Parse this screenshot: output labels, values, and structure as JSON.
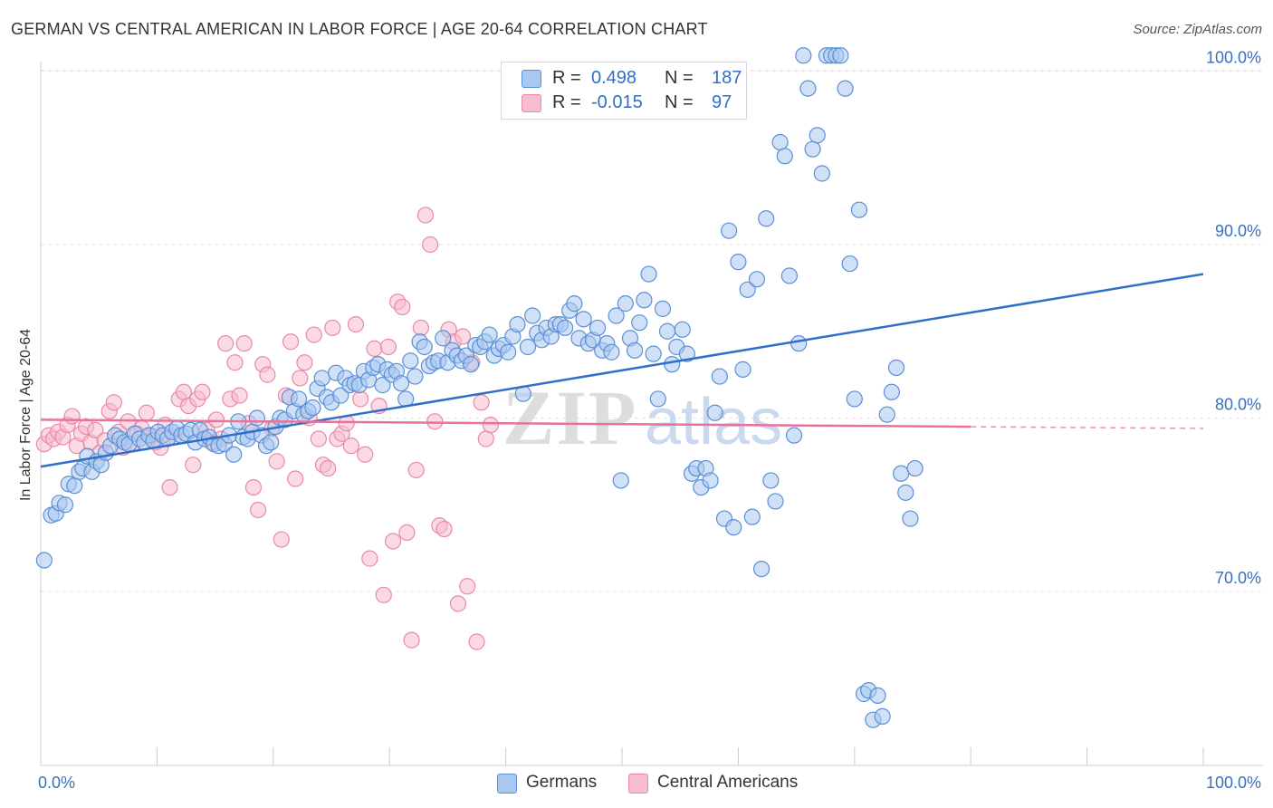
{
  "title": "GERMAN VS CENTRAL AMERICAN IN LABOR FORCE | AGE 20-64 CORRELATION CHART",
  "source": "Source: ZipAtlas.com",
  "legend": {
    "rows": [
      {
        "r_label": "R =",
        "r_value": "0.498",
        "n_label": "N =",
        "n_value": "187"
      },
      {
        "r_label": "R =",
        "r_value": "-0.015",
        "n_label": "N =",
        "n_value": "97"
      }
    ]
  },
  "bottom_legend": [
    "Germans",
    "Central Americans"
  ],
  "colors": {
    "german_fill": "#a9c8f0",
    "german_stroke": "#5b8fd6",
    "german_line": "#2f6fc9",
    "central_fill": "#f7bccd",
    "central_stroke": "#e88aa8",
    "central_line": "#e8729a",
    "axis_label": "#3a6fbf",
    "grid": "#e3e3e3"
  },
  "chart_data": {
    "type": "scatter",
    "title": "GERMAN VS CENTRAL AMERICAN IN LABOR FORCE | AGE 20-64 CORRELATION CHART",
    "xlabel": "",
    "ylabel": "In Labor Force | Age 20-64",
    "xlim": [
      0,
      100
    ],
    "ylim": [
      61,
      102
    ],
    "x_tick_labels": [
      "0.0%",
      "100.0%"
    ],
    "y_ticks": [
      70,
      80,
      90,
      100
    ],
    "y_tick_labels": [
      "70.0%",
      "80.0%",
      "90.0%",
      "100.0%"
    ],
    "grid": true,
    "legend_position": "top-center",
    "series": [
      {
        "name": "Germans",
        "R": 0.498,
        "N": 187,
        "trend": {
          "x": [
            0,
            100
          ],
          "y": [
            77.2,
            88.3
          ]
        },
        "points": [
          [
            0.3,
            71.8
          ],
          [
            0.9,
            74.4
          ],
          [
            1.3,
            74.5
          ],
          [
            1.6,
            75.1
          ],
          [
            2.1,
            75.0
          ],
          [
            2.4,
            76.2
          ],
          [
            2.9,
            76.1
          ],
          [
            3.3,
            76.9
          ],
          [
            3.6,
            77.1
          ],
          [
            4.0,
            77.8
          ],
          [
            4.4,
            76.9
          ],
          [
            4.8,
            77.5
          ],
          [
            5.2,
            77.3
          ],
          [
            5.6,
            78.0
          ],
          [
            6.0,
            78.4
          ],
          [
            6.4,
            79.0
          ],
          [
            6.8,
            78.8
          ],
          [
            7.2,
            78.6
          ],
          [
            7.6,
            78.5
          ],
          [
            8.1,
            79.1
          ],
          [
            8.5,
            78.8
          ],
          [
            8.9,
            78.6
          ],
          [
            9.3,
            79.0
          ],
          [
            9.7,
            78.7
          ],
          [
            10.1,
            79.2
          ],
          [
            10.5,
            79.0
          ],
          [
            10.9,
            78.8
          ],
          [
            11.3,
            79.2
          ],
          [
            11.7,
            79.4
          ],
          [
            12.1,
            79.0
          ],
          [
            12.5,
            79.1
          ],
          [
            12.9,
            79.3
          ],
          [
            13.3,
            78.6
          ],
          [
            13.7,
            79.3
          ],
          [
            14.1,
            78.8
          ],
          [
            14.5,
            78.9
          ],
          [
            14.9,
            78.5
          ],
          [
            15.3,
            78.4
          ],
          [
            15.8,
            78.5
          ],
          [
            16.2,
            79.0
          ],
          [
            16.6,
            77.9
          ],
          [
            17.0,
            79.8
          ],
          [
            17.4,
            78.9
          ],
          [
            17.8,
            78.8
          ],
          [
            18.2,
            79.2
          ],
          [
            18.6,
            80.0
          ],
          [
            19.0,
            79.0
          ],
          [
            19.4,
            78.4
          ],
          [
            19.8,
            78.6
          ],
          [
            20.2,
            79.5
          ],
          [
            20.6,
            80.0
          ],
          [
            21.0,
            79.9
          ],
          [
            21.4,
            81.2
          ],
          [
            21.8,
            80.4
          ],
          [
            22.2,
            81.1
          ],
          [
            22.6,
            80.2
          ],
          [
            23.0,
            80.4
          ],
          [
            23.4,
            80.6
          ],
          [
            23.8,
            81.7
          ],
          [
            24.2,
            82.3
          ],
          [
            24.6,
            81.2
          ],
          [
            25.0,
            80.9
          ],
          [
            25.4,
            82.6
          ],
          [
            25.8,
            81.3
          ],
          [
            26.2,
            82.3
          ],
          [
            26.6,
            81.9
          ],
          [
            27.0,
            82.0
          ],
          [
            27.4,
            81.9
          ],
          [
            27.8,
            82.7
          ],
          [
            28.2,
            82.2
          ],
          [
            28.6,
            82.9
          ],
          [
            29.0,
            83.1
          ],
          [
            29.4,
            81.9
          ],
          [
            29.8,
            82.8
          ],
          [
            30.2,
            82.5
          ],
          [
            30.6,
            82.7
          ],
          [
            31.0,
            82.0
          ],
          [
            31.4,
            81.1
          ],
          [
            31.8,
            83.3
          ],
          [
            32.2,
            82.4
          ],
          [
            32.6,
            84.4
          ],
          [
            33.0,
            84.1
          ],
          [
            33.4,
            83.0
          ],
          [
            33.8,
            83.2
          ],
          [
            34.2,
            83.3
          ],
          [
            34.6,
            84.6
          ],
          [
            35.0,
            83.2
          ],
          [
            35.4,
            83.9
          ],
          [
            35.8,
            83.6
          ],
          [
            36.2,
            83.3
          ],
          [
            36.6,
            83.6
          ],
          [
            37.0,
            83.1
          ],
          [
            37.4,
            84.2
          ],
          [
            37.8,
            84.1
          ],
          [
            38.2,
            84.4
          ],
          [
            38.6,
            84.8
          ],
          [
            39.0,
            83.6
          ],
          [
            39.4,
            84.0
          ],
          [
            39.8,
            84.2
          ],
          [
            40.2,
            83.8
          ],
          [
            40.6,
            84.7
          ],
          [
            41.0,
            85.4
          ],
          [
            41.5,
            81.4
          ],
          [
            41.9,
            84.1
          ],
          [
            42.3,
            85.9
          ],
          [
            42.7,
            84.9
          ],
          [
            43.1,
            84.5
          ],
          [
            43.5,
            85.2
          ],
          [
            43.9,
            84.7
          ],
          [
            44.3,
            85.4
          ],
          [
            44.7,
            85.4
          ],
          [
            45.1,
            85.2
          ],
          [
            45.5,
            86.2
          ],
          [
            45.9,
            86.6
          ],
          [
            46.3,
            84.6
          ],
          [
            46.7,
            85.7
          ],
          [
            47.1,
            84.3
          ],
          [
            47.5,
            84.5
          ],
          [
            47.9,
            85.2
          ],
          [
            48.3,
            83.9
          ],
          [
            48.7,
            84.3
          ],
          [
            49.1,
            83.8
          ],
          [
            49.5,
            85.9
          ],
          [
            49.9,
            76.4
          ],
          [
            50.3,
            86.6
          ],
          [
            50.7,
            84.6
          ],
          [
            51.1,
            83.9
          ],
          [
            51.5,
            85.5
          ],
          [
            51.9,
            86.8
          ],
          [
            52.3,
            88.3
          ],
          [
            52.7,
            83.7
          ],
          [
            53.1,
            81.1
          ],
          [
            53.5,
            86.3
          ],
          [
            53.9,
            85.0
          ],
          [
            54.3,
            83.1
          ],
          [
            54.7,
            84.1
          ],
          [
            55.2,
            85.1
          ],
          [
            55.6,
            83.7
          ],
          [
            56.0,
            76.8
          ],
          [
            56.4,
            77.1
          ],
          [
            56.8,
            76.0
          ],
          [
            57.2,
            77.1
          ],
          [
            57.6,
            76.4
          ],
          [
            58.0,
            80.3
          ],
          [
            58.4,
            82.4
          ],
          [
            58.8,
            74.2
          ],
          [
            59.2,
            90.8
          ],
          [
            59.6,
            73.7
          ],
          [
            60.0,
            89.0
          ],
          [
            60.4,
            82.8
          ],
          [
            60.8,
            87.4
          ],
          [
            61.2,
            74.3
          ],
          [
            61.6,
            88.0
          ],
          [
            62.0,
            71.3
          ],
          [
            62.4,
            91.5
          ],
          [
            62.8,
            76.4
          ],
          [
            63.2,
            75.2
          ],
          [
            63.6,
            95.9
          ],
          [
            64.0,
            95.1
          ],
          [
            64.4,
            88.2
          ],
          [
            64.8,
            79.0
          ],
          [
            65.2,
            84.3
          ],
          [
            65.6,
            100.9
          ],
          [
            66.0,
            99.0
          ],
          [
            66.4,
            95.5
          ],
          [
            66.8,
            96.3
          ],
          [
            67.2,
            94.1
          ],
          [
            67.6,
            100.9
          ],
          [
            68.0,
            100.9
          ],
          [
            68.4,
            100.9
          ],
          [
            68.8,
            100.9
          ],
          [
            69.2,
            99.0
          ],
          [
            69.6,
            88.9
          ],
          [
            70.0,
            81.1
          ],
          [
            70.4,
            92.0
          ],
          [
            70.8,
            64.1
          ],
          [
            71.2,
            64.3
          ],
          [
            71.6,
            62.6
          ],
          [
            72.0,
            64.0
          ],
          [
            72.4,
            62.8
          ],
          [
            72.8,
            80.2
          ],
          [
            73.2,
            81.5
          ],
          [
            73.6,
            82.9
          ],
          [
            74.0,
            76.8
          ],
          [
            74.4,
            75.7
          ],
          [
            74.8,
            74.2
          ],
          [
            75.2,
            77.1
          ]
        ]
      },
      {
        "name": "Central Americans",
        "R": -0.015,
        "N": 97,
        "trend": {
          "x": [
            0,
            80
          ],
          "y": [
            79.9,
            79.5
          ]
        },
        "points": [
          [
            0.3,
            78.5
          ],
          [
            0.7,
            79.0
          ],
          [
            1.1,
            78.8
          ],
          [
            1.5,
            79.2
          ],
          [
            1.9,
            78.9
          ],
          [
            2.3,
            79.6
          ],
          [
            2.7,
            80.1
          ],
          [
            3.1,
            78.4
          ],
          [
            3.5,
            79.1
          ],
          [
            3.9,
            79.5
          ],
          [
            4.3,
            78.6
          ],
          [
            4.7,
            79.3
          ],
          [
            5.1,
            78.0
          ],
          [
            5.5,
            78.7
          ],
          [
            5.9,
            80.4
          ],
          [
            6.3,
            80.9
          ],
          [
            6.7,
            79.2
          ],
          [
            7.1,
            78.3
          ],
          [
            7.5,
            79.8
          ],
          [
            7.9,
            78.5
          ],
          [
            8.3,
            79.1
          ],
          [
            8.7,
            79.4
          ],
          [
            9.1,
            80.3
          ],
          [
            9.5,
            79.0
          ],
          [
            9.9,
            78.6
          ],
          [
            10.3,
            78.3
          ],
          [
            10.7,
            79.6
          ],
          [
            11.1,
            76.0
          ],
          [
            11.5,
            78.9
          ],
          [
            11.9,
            81.1
          ],
          [
            12.3,
            81.5
          ],
          [
            12.7,
            80.7
          ],
          [
            13.1,
            77.3
          ],
          [
            13.5,
            81.1
          ],
          [
            13.9,
            81.5
          ],
          [
            14.3,
            79.3
          ],
          [
            14.7,
            78.6
          ],
          [
            15.1,
            79.9
          ],
          [
            15.5,
            78.8
          ],
          [
            15.9,
            84.3
          ],
          [
            16.3,
            81.1
          ],
          [
            16.7,
            83.2
          ],
          [
            17.1,
            81.3
          ],
          [
            17.5,
            84.3
          ],
          [
            17.9,
            79.7
          ],
          [
            18.3,
            76.0
          ],
          [
            18.7,
            74.7
          ],
          [
            19.1,
            83.1
          ],
          [
            19.5,
            82.5
          ],
          [
            19.9,
            79.4
          ],
          [
            20.3,
            77.5
          ],
          [
            20.7,
            73.0
          ],
          [
            21.1,
            81.3
          ],
          [
            21.5,
            84.4
          ],
          [
            21.9,
            76.5
          ],
          [
            22.3,
            82.3
          ],
          [
            22.7,
            83.2
          ],
          [
            23.1,
            80.0
          ],
          [
            23.5,
            84.8
          ],
          [
            23.9,
            78.8
          ],
          [
            24.3,
            77.3
          ],
          [
            24.7,
            77.1
          ],
          [
            25.1,
            85.2
          ],
          [
            25.5,
            78.8
          ],
          [
            25.9,
            79.1
          ],
          [
            26.3,
            79.7
          ],
          [
            26.7,
            78.4
          ],
          [
            27.1,
            85.4
          ],
          [
            27.5,
            81.1
          ],
          [
            27.9,
            77.9
          ],
          [
            28.3,
            71.9
          ],
          [
            28.7,
            84.0
          ],
          [
            29.1,
            80.7
          ],
          [
            29.5,
            69.8
          ],
          [
            29.9,
            84.1
          ],
          [
            30.3,
            72.9
          ],
          [
            30.7,
            86.7
          ],
          [
            31.1,
            86.4
          ],
          [
            31.5,
            73.4
          ],
          [
            31.9,
            67.2
          ],
          [
            32.3,
            77.0
          ],
          [
            32.7,
            85.2
          ],
          [
            33.1,
            91.7
          ],
          [
            33.5,
            90.0
          ],
          [
            33.9,
            79.8
          ],
          [
            34.3,
            73.8
          ],
          [
            34.7,
            73.6
          ],
          [
            35.1,
            85.1
          ],
          [
            35.5,
            84.4
          ],
          [
            35.9,
            69.3
          ],
          [
            36.3,
            84.7
          ],
          [
            36.7,
            70.3
          ],
          [
            37.1,
            83.2
          ],
          [
            37.5,
            67.1
          ],
          [
            37.9,
            80.9
          ],
          [
            38.3,
            78.8
          ],
          [
            38.7,
            79.6
          ]
        ]
      }
    ]
  }
}
